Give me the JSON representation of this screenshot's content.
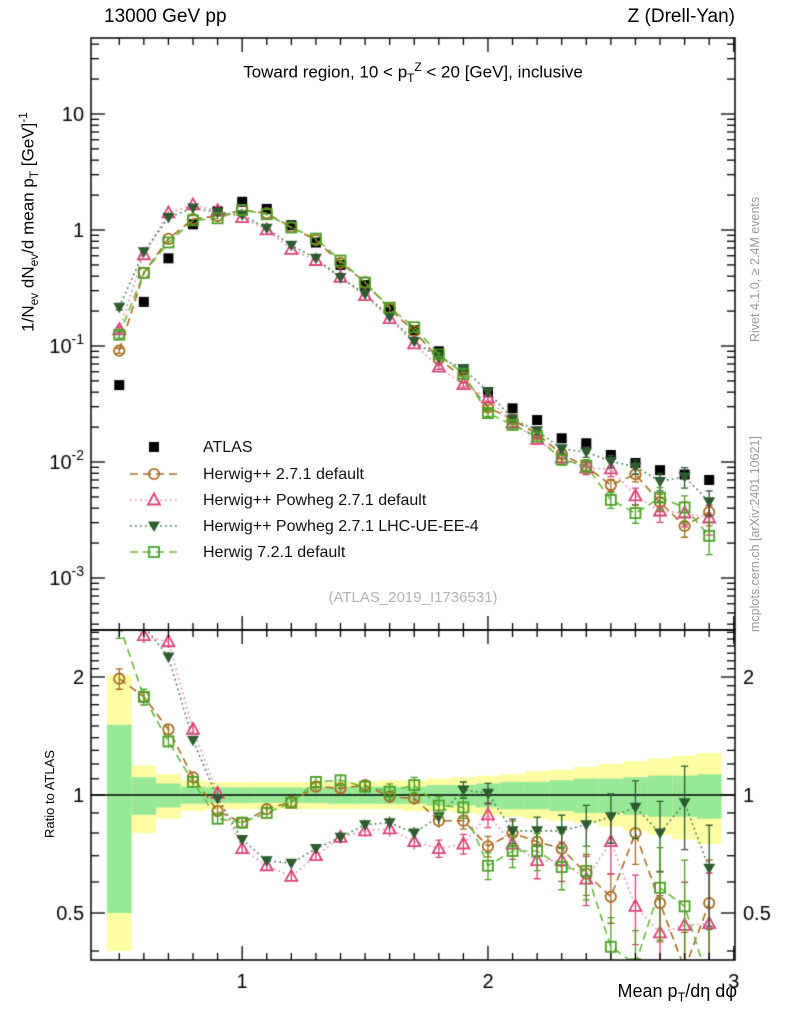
{
  "header": {
    "left": "13000 GeV pp",
    "right": "Z (Drell-Yan)"
  },
  "plot_title": "Toward region, 10 < p_{T}^{Z} < 20 [GeV], inclusive",
  "watermark": "(ATLAS_2019_I1736531)",
  "side_notes": {
    "top_right": "Rivet 4.1.0, ≥ 2.4M events",
    "bottom_right": "mcplots.cern.ch [arXiv:2401.10621]"
  },
  "axes": {
    "main_y_title": "1/N_{ev} dN_{ev}/d mean p_{T} [GeV]^{-1}",
    "ratio_y_title": "Ratio to ATLAS",
    "x_title": "Mean p_{T}/dη dφ",
    "x_major_ticks": [
      {
        "v": 1,
        "label": "1"
      },
      {
        "v": 2,
        "label": "2"
      },
      {
        "v": 3,
        "label": "3"
      }
    ],
    "main_y_major_ticks": [
      {
        "v": 10,
        "label": "10"
      },
      {
        "v": 1,
        "label": "1"
      },
      {
        "v": 0.1,
        "label": "10^{-1}"
      },
      {
        "v": 0.01,
        "label": "10^{-2}"
      },
      {
        "v": 0.001,
        "label": "10^{-3}"
      }
    ],
    "ratio_y_major_ticks": [
      {
        "v": 2,
        "label": "2"
      },
      {
        "v": 1,
        "label": "1"
      },
      {
        "v": 0.5,
        "label": "0.5"
      }
    ]
  },
  "colors": {
    "atlas": "#000000",
    "herwigpp_default": "#a86d21",
    "herwigpp_powheg_default_marker": "#d9447a",
    "herwigpp_powheg_default_line": "#ee8fae",
    "herwigpp_powheg_ue_marker": "#2e5b30",
    "herwigpp_powheg_ue_line": "#4a8050",
    "herwig7_marker": "#4d9f27",
    "herwig7_line": "#67b83f",
    "band_yellow": "#fcfca2",
    "band_green": "#97e897",
    "watermark_gray": "#b3b3b3"
  },
  "chart_data": {
    "type": "line",
    "subtype": "data-vs-mc with ratio panel",
    "title": "Toward region, 10 < pT^Z < 20 [GeV], inclusive",
    "xlabel": "Mean pT/deta dphi",
    "ylabel_main": "1/Nev dNev/d mean pT [GeV]^-1",
    "ylabel_ratio": "Ratio to ATLAS",
    "x_scale": "linear",
    "y_scale_main": "log",
    "y_scale_ratio": "log",
    "x_range": [
      0.385,
      3.005
    ],
    "y_range_main": [
      0.00037,
      45
    ],
    "ratio_range": [
      0.38,
      2.64
    ],
    "legend_position": "middle-left",
    "x": [
      0.5,
      0.6,
      0.7,
      0.8,
      0.9,
      1.0,
      1.1,
      1.2,
      1.3,
      1.4,
      1.5,
      1.6,
      1.7,
      1.8,
      1.9,
      2.0,
      2.1,
      2.2,
      2.3,
      2.4,
      2.5,
      2.6,
      2.7,
      2.8,
      2.9
    ],
    "atlas": {
      "label": "ATLAS",
      "marker": "fsquare",
      "values": [
        0.046,
        0.24,
        0.57,
        1.12,
        1.45,
        1.75,
        1.52,
        1.1,
        0.78,
        0.5,
        0.335,
        0.21,
        0.137,
        0.09,
        0.062,
        0.04,
        0.029,
        0.023,
        0.016,
        0.0145,
        0.0115,
        0.0098,
        0.0085,
        0.0078,
        0.007
      ]
    },
    "series": [
      {
        "label": "Herwig++ 2.7.1 default",
        "marker": "ocircle",
        "line": "dashed",
        "marker_color": "#a86d21",
        "line_color": "#a86d21",
        "err_mult": 1.0,
        "ratio": [
          1.98,
          1.78,
          1.47,
          1.11,
          0.91,
          0.85,
          0.92,
          0.96,
          1.05,
          1.04,
          1.06,
          0.99,
          0.98,
          0.86,
          0.86,
          0.74,
          0.8,
          0.76,
          0.73,
          0.63,
          0.55,
          0.8,
          0.53,
          0.36,
          0.53
        ]
      },
      {
        "label": "Herwig++ Powheg 2.7.1 default",
        "marker": "otriangle",
        "line": "dotted",
        "marker_color": "#d9447a",
        "line_color": "#ee8fae",
        "err_mult": 1.2,
        "ratio": [
          3.0,
          2.55,
          2.46,
          1.47,
          1.01,
          0.73,
          0.66,
          0.62,
          0.7,
          0.78,
          0.81,
          0.82,
          0.76,
          0.73,
          0.75,
          0.89,
          0.75,
          0.68,
          0.68,
          0.61,
          0.76,
          0.52,
          0.445,
          0.465,
          0.47
        ]
      },
      {
        "label": "Herwig++ Powheg 2.7.1 LHC-UE-EE-4",
        "marker": "ftriangledown",
        "line": "dotted",
        "marker_color": "#2e5b30",
        "line_color": "#4a8050",
        "err_mult": 1.0,
        "ratio": [
          4.7,
          2.7,
          2.25,
          1.38,
          0.98,
          0.77,
          0.68,
          0.67,
          0.73,
          0.78,
          0.84,
          0.85,
          0.8,
          0.88,
          1.03,
          1.01,
          0.81,
          0.81,
          0.81,
          0.84,
          0.88,
          0.93,
          0.8,
          0.955,
          0.65
        ]
      },
      {
        "label": "Herwig 7.2.1 default",
        "marker": "osquare",
        "line": "dashed",
        "marker_color": "#4d9f27",
        "line_color": "#67b83f",
        "err_mult": 1.3,
        "ratio": [
          2.72,
          1.78,
          1.37,
          1.08,
          0.87,
          0.85,
          0.9,
          0.955,
          1.08,
          1.09,
          1.05,
          1.02,
          1.06,
          0.94,
          0.93,
          0.66,
          0.72,
          0.72,
          0.655,
          0.64,
          0.41,
          0.37,
          0.58,
          0.52,
          0.33
        ]
      }
    ],
    "err_rel": [
      0.05,
      0.03,
      0.025,
      0.02,
      0.02,
      0.02,
      0.02,
      0.02,
      0.02,
      0.025,
      0.025,
      0.03,
      0.03,
      0.035,
      0.04,
      0.05,
      0.06,
      0.07,
      0.08,
      0.1,
      0.12,
      0.14,
      0.17,
      0.2,
      0.24
    ],
    "uncertainty_bands": {
      "bin_half_width": 0.05,
      "yellow_lo": [
        0.4,
        0.8,
        0.87,
        0.91,
        0.92,
        0.92,
        0.92,
        0.92,
        0.92,
        0.92,
        0.92,
        0.92,
        0.91,
        0.91,
        0.9,
        0.89,
        0.88,
        0.87,
        0.86,
        0.85,
        0.83,
        0.81,
        0.79,
        0.77,
        0.75
      ],
      "yellow_hi": [
        2.02,
        1.19,
        1.13,
        1.09,
        1.08,
        1.08,
        1.08,
        1.08,
        1.08,
        1.08,
        1.08,
        1.09,
        1.09,
        1.1,
        1.11,
        1.12,
        1.13,
        1.15,
        1.16,
        1.18,
        1.2,
        1.22,
        1.24,
        1.26,
        1.28
      ],
      "green_lo": [
        0.5,
        0.89,
        0.93,
        0.95,
        0.955,
        0.955,
        0.955,
        0.955,
        0.955,
        0.95,
        0.95,
        0.95,
        0.95,
        0.94,
        0.94,
        0.93,
        0.92,
        0.92,
        0.91,
        0.9,
        0.9,
        0.89,
        0.88,
        0.88,
        0.87
      ],
      "green_hi": [
        1.51,
        1.11,
        1.07,
        1.05,
        1.045,
        1.045,
        1.045,
        1.045,
        1.045,
        1.05,
        1.05,
        1.05,
        1.05,
        1.06,
        1.06,
        1.07,
        1.08,
        1.08,
        1.09,
        1.1,
        1.1,
        1.11,
        1.12,
        1.12,
        1.13
      ]
    }
  }
}
